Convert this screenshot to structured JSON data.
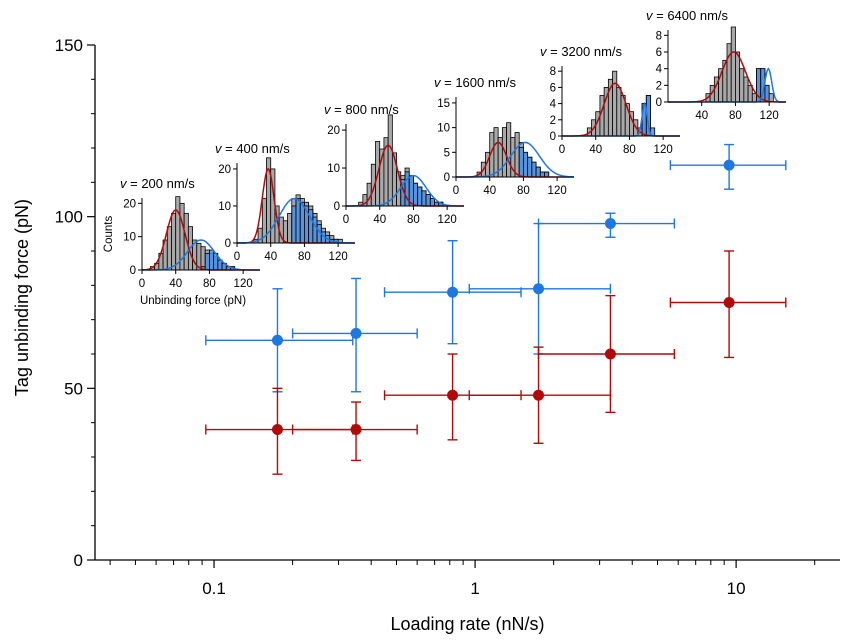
{
  "chart_data": {
    "type": "scatter",
    "xlabel": "Loading rate (nN/s)",
    "ylabel": "Tag unbinding force (pN)",
    "xscale": "log",
    "xlim": [
      0.035,
      25
    ],
    "ylim": [
      0,
      150
    ],
    "xticks": [
      {
        "value": 0.1,
        "label": "0.1"
      },
      {
        "value": 1,
        "label": "1"
      },
      {
        "value": 10,
        "label": "10"
      }
    ],
    "yticks": [
      {
        "value": 0,
        "label": "0"
      },
      {
        "value": 50,
        "label": "50"
      },
      {
        "value": 100,
        "label": "100"
      },
      {
        "value": 150,
        "label": "150"
      }
    ],
    "colors": {
      "blue": "#1f77e0",
      "red": "#b00b0b",
      "gray": "#a9a9a9"
    },
    "series": [
      {
        "color": "#1f77e0",
        "points": [
          {
            "x": 0.175,
            "y": 64,
            "xlo": 0.093,
            "xhi": 0.34,
            "ylo": 49,
            "yhi": 79
          },
          {
            "x": 0.35,
            "y": 66,
            "xlo": 0.2,
            "xhi": 0.6,
            "ylo": 49,
            "yhi": 82
          },
          {
            "x": 0.82,
            "y": 78,
            "xlo": 0.45,
            "xhi": 1.5,
            "ylo": 63,
            "yhi": 93
          },
          {
            "x": 1.75,
            "y": 79,
            "xlo": 0.95,
            "xhi": 3.3,
            "ylo": 60,
            "yhi": 98
          },
          {
            "x": 3.3,
            "y": 98,
            "xlo": 1.75,
            "xhi": 5.8,
            "ylo": 94,
            "yhi": 101
          },
          {
            "x": 9.4,
            "y": 115,
            "xlo": 5.6,
            "xhi": 15.5,
            "ylo": 108,
            "yhi": 121
          }
        ]
      },
      {
        "color": "#b00b0b",
        "points": [
          {
            "x": 0.175,
            "y": 38,
            "xlo": 0.093,
            "xhi": 0.34,
            "ylo": 25,
            "yhi": 50
          },
          {
            "x": 0.35,
            "y": 38,
            "xlo": 0.2,
            "xhi": 0.6,
            "ylo": 29,
            "yhi": 46
          },
          {
            "x": 0.82,
            "y": 48,
            "xlo": 0.45,
            "xhi": 1.5,
            "ylo": 35,
            "yhi": 60
          },
          {
            "x": 1.75,
            "y": 48,
            "xlo": 0.95,
            "xhi": 3.3,
            "ylo": 34,
            "yhi": 62
          },
          {
            "x": 3.3,
            "y": 60,
            "xlo": 1.75,
            "xhi": 5.8,
            "ylo": 43,
            "yhi": 77
          },
          {
            "x": 9.4,
            "y": 75,
            "xlo": 5.6,
            "xhi": 15.5,
            "ylo": 59,
            "yhi": 90
          }
        ]
      }
    ],
    "insets": [
      {
        "velocity_label": "v",
        "velocity_text": " = 200 nm/s",
        "ylabel": "Counts",
        "xlabel": "Unbinding force (pN)",
        "yticks": [
          0,
          10,
          20
        ],
        "xticks": [
          0,
          40,
          80,
          120
        ],
        "bin_width": 5,
        "counts": [
          0,
          0,
          1,
          2,
          5,
          9,
          13,
          17,
          22,
          20,
          17,
          13,
          9,
          8,
          7,
          6,
          5,
          4,
          3,
          2,
          1,
          1,
          0,
          0,
          0,
          0,
          0,
          0
        ],
        "blue_counts": [
          0,
          0,
          0,
          0,
          0,
          0,
          0,
          0,
          0,
          0,
          0,
          0,
          0,
          0,
          1,
          5,
          6,
          5,
          3,
          2,
          1,
          1,
          0,
          0,
          0,
          0,
          0,
          0
        ],
        "red_fit": {
          "mu": 40,
          "sigma": 11,
          "amp": 18
        },
        "blue_fit": {
          "mu": 70,
          "sigma": 16,
          "amp": 9
        }
      },
      {
        "velocity_label": "v",
        "velocity_text": " = 400 nm/s",
        "yticks": [
          0,
          10,
          20
        ],
        "xticks": [
          0,
          40,
          80,
          120
        ],
        "bin_width": 5,
        "counts": [
          0,
          0,
          0,
          0,
          1,
          4,
          12,
          23,
          20,
          10,
          7,
          6,
          8,
          12,
          13,
          12,
          11,
          10,
          8,
          6,
          4,
          3,
          2,
          1,
          1,
          0,
          0,
          0
        ],
        "blue_counts": [
          0,
          0,
          0,
          0,
          0,
          0,
          0,
          0,
          0,
          0,
          0,
          0,
          0,
          10,
          12,
          11,
          10,
          9,
          7,
          5,
          3,
          2,
          1,
          1,
          0,
          0,
          0,
          0
        ],
        "red_fit": {
          "mu": 37,
          "sigma": 7,
          "amp": 20
        },
        "blue_fit": {
          "mu": 68,
          "sigma": 18,
          "amp": 12
        }
      },
      {
        "velocity_label": "v",
        "velocity_text": " = 800 nm/s",
        "yticks": [
          0,
          10,
          20
        ],
        "xticks": [
          0,
          40,
          80,
          120
        ],
        "bin_width": 5,
        "counts": [
          0,
          0,
          0,
          1,
          3,
          6,
          11,
          17,
          15,
          18,
          24,
          14,
          9,
          8,
          10,
          8,
          6,
          5,
          4,
          3,
          2,
          1,
          1,
          0,
          0,
          0,
          0,
          0
        ],
        "blue_counts": [
          0,
          0,
          0,
          0,
          0,
          0,
          0,
          0,
          0,
          0,
          0,
          0,
          0,
          7,
          9,
          8,
          6,
          5,
          4,
          3,
          2,
          1,
          1,
          0,
          0,
          0,
          0,
          0
        ],
        "red_fit": {
          "mu": 50,
          "sigma": 11,
          "amp": 16
        },
        "blue_fit": {
          "mu": 80,
          "sigma": 15,
          "amp": 8
        }
      },
      {
        "velocity_label": "v",
        "velocity_text": " = 1600 nm/s",
        "yticks": [
          0,
          5,
          10,
          15
        ],
        "xticks": [
          0,
          40,
          80,
          120
        ],
        "bin_width": 5,
        "counts": [
          0,
          0,
          0,
          0,
          0,
          1,
          3,
          5,
          9,
          10,
          8,
          10,
          11,
          8,
          9,
          7,
          5,
          4,
          3,
          2,
          1,
          1,
          0,
          0,
          0,
          0,
          0,
          0
        ],
        "blue_counts": [
          0,
          0,
          0,
          0,
          0,
          0,
          0,
          0,
          0,
          0,
          0,
          0,
          0,
          0,
          0,
          6,
          5,
          4,
          3,
          2,
          1,
          1,
          0,
          0,
          0,
          0,
          0,
          0
        ],
        "red_fit": {
          "mu": 50,
          "sigma": 10,
          "amp": 7
        },
        "blue_fit": {
          "mu": 82,
          "sigma": 17,
          "amp": 7
        }
      },
      {
        "velocity_label": "v",
        "velocity_text": " = 3200 nm/s",
        "yticks": [
          0,
          2,
          4,
          6,
          8
        ],
        "xticks": [
          0,
          40,
          80,
          120
        ],
        "bin_width": 5,
        "counts": [
          0,
          0,
          0,
          0,
          0,
          0,
          1,
          2,
          3,
          5,
          6,
          7,
          8,
          6,
          5,
          4,
          3,
          2,
          1,
          4,
          5,
          0,
          0,
          0,
          0,
          0,
          0,
          0
        ],
        "blue_counts": [
          0,
          0,
          0,
          0,
          0,
          0,
          0,
          0,
          0,
          0,
          0,
          0,
          0,
          0,
          0,
          0,
          0,
          0,
          0,
          4,
          5,
          1,
          0,
          0,
          0,
          0,
          0,
          0
        ],
        "red_fit": {
          "mu": 63,
          "sigma": 13,
          "amp": 6.5
        },
        "blue_fit": {
          "mu": 98,
          "sigma": 3,
          "amp": 4
        }
      },
      {
        "velocity_label": "v",
        "velocity_text": " = 6400 nm/s",
        "yticks": [
          0,
          2,
          4,
          6,
          8
        ],
        "xticks": [
          40,
          80,
          120
        ],
        "bin_width": 5,
        "counts": [
          0,
          0,
          0,
          0,
          0,
          0,
          0,
          0,
          0,
          1,
          2,
          3,
          4,
          5,
          7,
          9,
          6,
          4,
          3,
          2,
          1,
          4,
          4,
          2,
          1,
          0,
          0,
          0
        ],
        "blue_counts": [
          0,
          0,
          0,
          0,
          0,
          0,
          0,
          0,
          0,
          0,
          0,
          0,
          0,
          0,
          0,
          0,
          0,
          0,
          0,
          0,
          0,
          4,
          4,
          2,
          0,
          0,
          0,
          0
        ],
        "red_fit": {
          "mu": 78,
          "sigma": 14,
          "amp": 6
        },
        "blue_fit": {
          "mu": 119,
          "sigma": 4,
          "amp": 4
        }
      }
    ]
  }
}
